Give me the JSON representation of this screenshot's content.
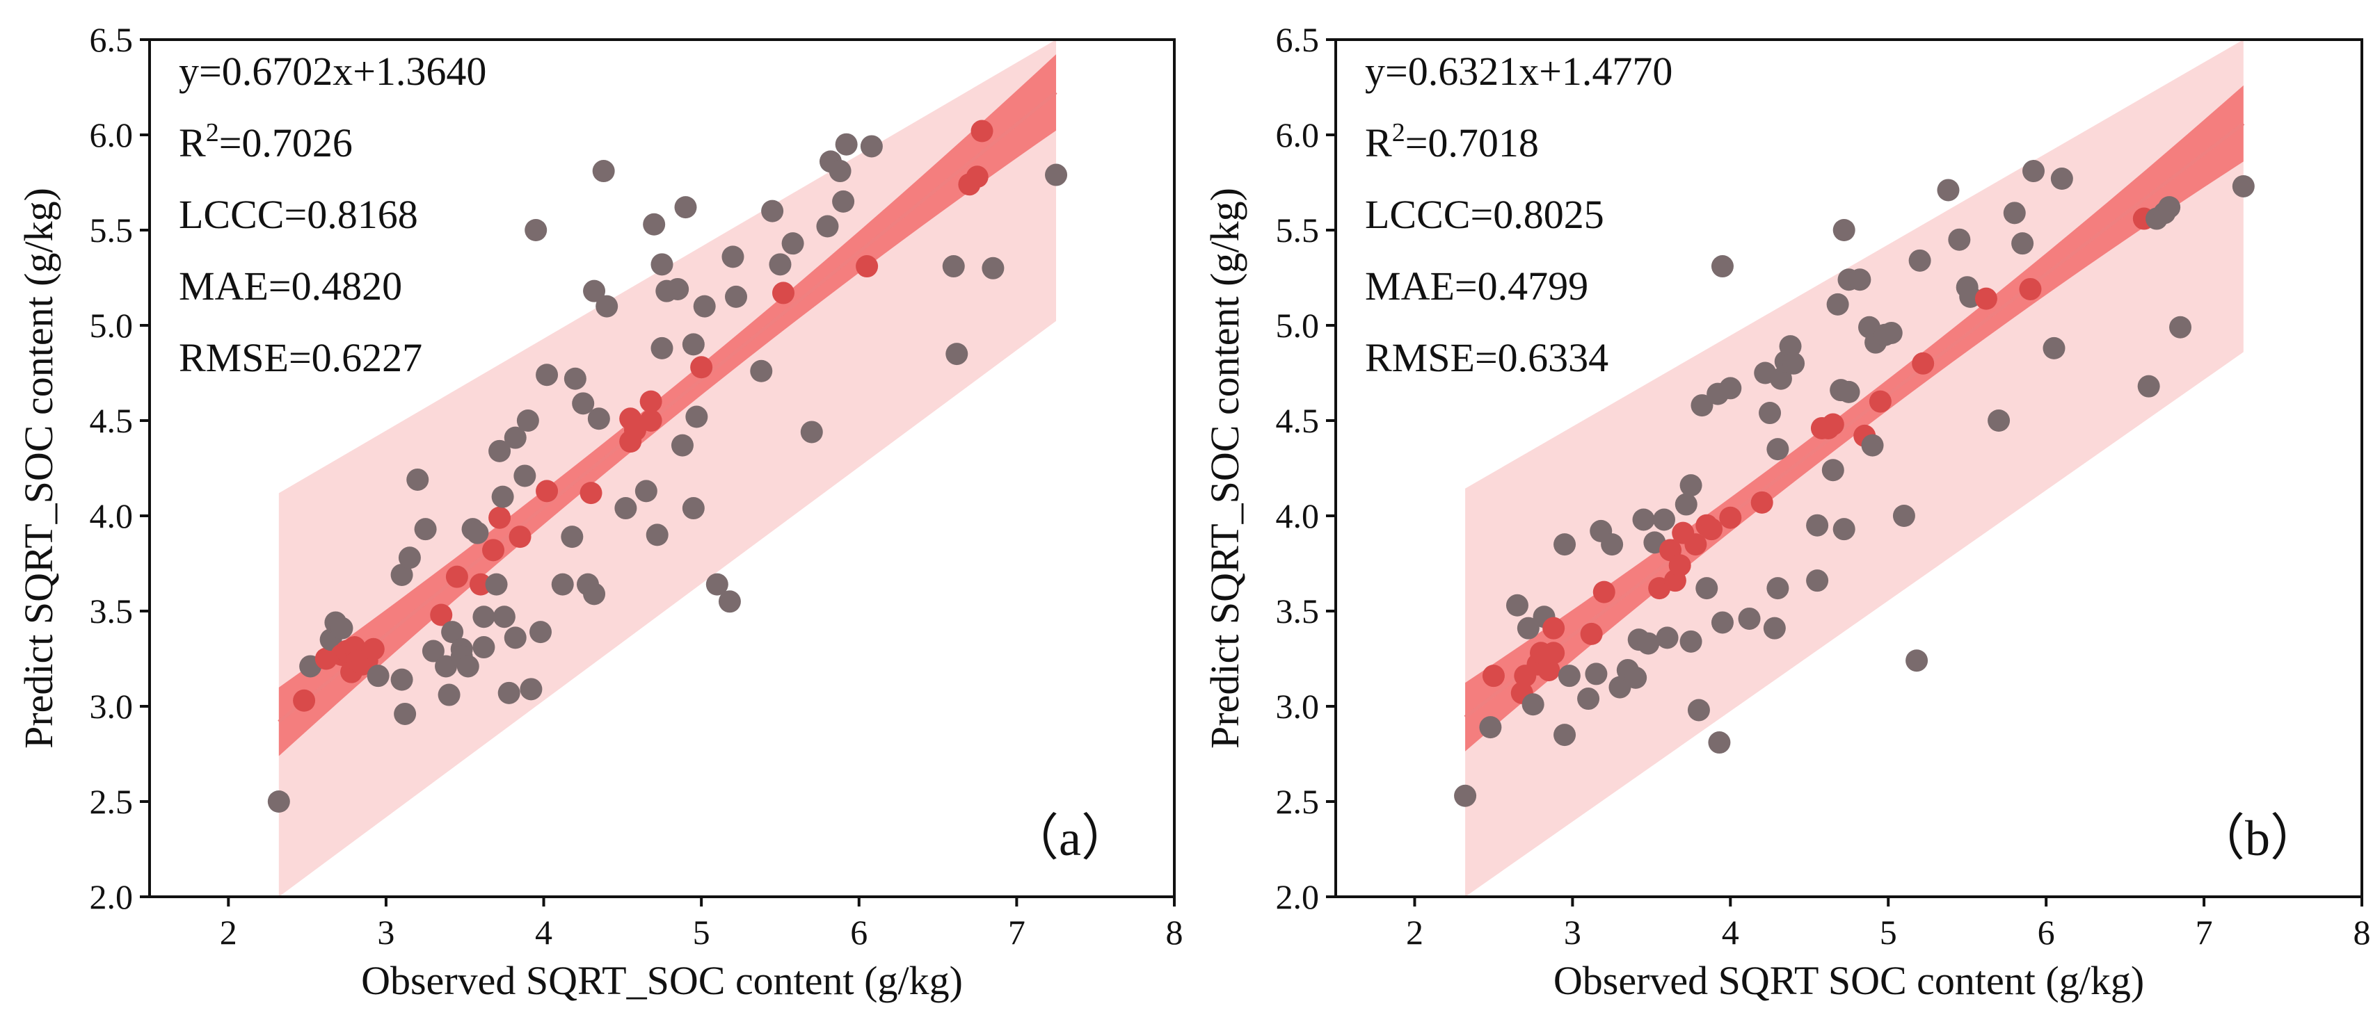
{
  "chart_data": [
    {
      "type": "scatter",
      "panel_label": "（a）",
      "xlabel": "Observed SQRT_SOC content (g/kg)",
      "ylabel": "Predict SQRT_SOC content (g/kg)",
      "xlim": [
        1.5,
        8
      ],
      "ylim": [
        2.0,
        6.5
      ],
      "xticks": [
        2,
        3,
        4,
        5,
        6,
        7,
        8
      ],
      "yticks": [
        "2.0",
        "2.5",
        "3.0",
        "3.5",
        "4.0",
        "4.5",
        "5.0",
        "5.5",
        "6.0",
        "6.5"
      ],
      "stats": {
        "equation": "y=0.6702x+1.3640",
        "r2_prefix": "R",
        "r2_sup": "2",
        "r2_value": "=0.7026",
        "lccc": "LCCC=0.8168",
        "mae": "MAE=0.4820",
        "rmse": "RMSE=0.6227"
      },
      "fit": {
        "slope": 0.6702,
        "intercept": 1.364,
        "x_range": [
          2.32,
          7.25
        ],
        "ci_halfwidth": [
          0.18,
          0.08,
          0.2
        ],
        "pi_halfwidth": 1.2
      },
      "colors": {
        "point": "#7a6b6d",
        "point_in_band": "#d94a4a",
        "line": "#f08080",
        "ci_band": "#f26d6d",
        "pi_band": "#fbd9d9"
      },
      "points": [
        [
          2.32,
          2.5
        ],
        [
          2.48,
          3.03
        ],
        [
          2.52,
          3.21
        ],
        [
          2.62,
          3.25
        ],
        [
          2.65,
          3.35
        ],
        [
          2.68,
          3.44
        ],
        [
          2.72,
          3.41
        ],
        [
          2.72,
          3.27
        ],
        [
          2.75,
          3.29
        ],
        [
          2.78,
          3.18
        ],
        [
          2.8,
          3.31
        ],
        [
          2.82,
          3.24
        ],
        [
          2.85,
          3.22
        ],
        [
          2.88,
          3.24
        ],
        [
          2.92,
          3.3
        ],
        [
          2.95,
          3.16
        ],
        [
          3.1,
          3.14
        ],
        [
          3.1,
          3.69
        ],
        [
          3.12,
          2.96
        ],
        [
          3.15,
          3.78
        ],
        [
          3.2,
          4.19
        ],
        [
          3.25,
          3.93
        ],
        [
          3.3,
          3.29
        ],
        [
          3.35,
          3.48
        ],
        [
          3.38,
          3.21
        ],
        [
          3.4,
          3.06
        ],
        [
          3.42,
          3.39
        ],
        [
          3.45,
          3.68
        ],
        [
          3.48,
          3.3
        ],
        [
          3.48,
          3.26
        ],
        [
          3.52,
          3.21
        ],
        [
          3.55,
          3.93
        ],
        [
          3.58,
          3.91
        ],
        [
          3.6,
          3.64
        ],
        [
          3.62,
          3.47
        ],
        [
          3.62,
          3.31
        ],
        [
          3.68,
          3.82
        ],
        [
          3.7,
          3.64
        ],
        [
          3.72,
          3.99
        ],
        [
          3.72,
          4.34
        ],
        [
          3.74,
          4.1
        ],
        [
          3.75,
          3.47
        ],
        [
          3.78,
          3.07
        ],
        [
          3.82,
          4.41
        ],
        [
          3.82,
          3.36
        ],
        [
          3.85,
          3.89
        ],
        [
          3.88,
          4.21
        ],
        [
          3.9,
          4.5
        ],
        [
          3.92,
          3.09
        ],
        [
          3.95,
          5.5
        ],
        [
          3.98,
          3.39
        ],
        [
          4.02,
          4.74
        ],
        [
          4.02,
          4.13
        ],
        [
          4.12,
          3.64
        ],
        [
          4.18,
          3.89
        ],
        [
          4.2,
          4.72
        ],
        [
          4.25,
          4.59
        ],
        [
          4.28,
          3.64
        ],
        [
          4.3,
          4.12
        ],
        [
          4.32,
          3.59
        ],
        [
          4.32,
          5.18
        ],
        [
          4.35,
          4.51
        ],
        [
          4.38,
          5.81
        ],
        [
          4.4,
          5.1
        ],
        [
          4.52,
          4.04
        ],
        [
          4.55,
          4.51
        ],
        [
          4.55,
          4.39
        ],
        [
          4.58,
          4.45
        ],
        [
          4.65,
          4.13
        ],
        [
          4.68,
          4.6
        ],
        [
          4.68,
          4.5
        ],
        [
          4.7,
          5.53
        ],
        [
          4.72,
          3.9
        ],
        [
          4.75,
          5.32
        ],
        [
          4.75,
          4.88
        ],
        [
          4.78,
          5.18
        ],
        [
          4.85,
          5.19
        ],
        [
          4.88,
          4.37
        ],
        [
          4.9,
          5.62
        ],
        [
          4.95,
          4.04
        ],
        [
          4.95,
          4.9
        ],
        [
          4.97,
          4.52
        ],
        [
          5.0,
          4.78
        ],
        [
          5.02,
          5.1
        ],
        [
          5.1,
          3.64
        ],
        [
          5.18,
          3.55
        ],
        [
          5.2,
          5.36
        ],
        [
          5.22,
          5.15
        ],
        [
          5.38,
          4.76
        ],
        [
          5.45,
          5.6
        ],
        [
          5.5,
          5.32
        ],
        [
          5.52,
          5.17
        ],
        [
          5.58,
          5.43
        ],
        [
          5.7,
          4.44
        ],
        [
          5.8,
          5.52
        ],
        [
          5.82,
          5.86
        ],
        [
          5.88,
          5.81
        ],
        [
          5.9,
          5.65
        ],
        [
          5.92,
          5.95
        ],
        [
          6.05,
          5.31
        ],
        [
          6.08,
          5.94
        ],
        [
          6.6,
          5.31
        ],
        [
          6.62,
          4.85
        ],
        [
          6.7,
          5.74
        ],
        [
          6.75,
          5.78
        ],
        [
          6.78,
          6.02
        ],
        [
          6.85,
          5.3
        ],
        [
          7.25,
          5.79
        ]
      ]
    },
    {
      "type": "scatter",
      "panel_label": "（b）",
      "xlabel": "Observed SQRT  SOC content (g/kg)",
      "ylabel": "Predict SQRT_SOC content (g/kg)",
      "xlim": [
        1.5,
        8
      ],
      "ylim": [
        2.0,
        6.5
      ],
      "xticks": [
        2,
        3,
        4,
        5,
        6,
        7,
        8
      ],
      "yticks": [
        "2.0",
        "2.5",
        "3.0",
        "3.5",
        "4.0",
        "4.5",
        "5.0",
        "5.5",
        "6.0",
        "6.5"
      ],
      "stats": {
        "equation": "y=0.6321x+1.4770",
        "r2_prefix": "R",
        "r2_sup": "2",
        "r2_value": "=0.7018",
        "lccc": "LCCC=0.8025",
        "mae": "MAE=0.4799",
        "rmse": "RMSE=0.6334"
      },
      "fit": {
        "slope": 0.6321,
        "intercept": 1.477,
        "x_range": [
          2.32,
          7.25
        ],
        "ci_halfwidth": [
          0.18,
          0.08,
          0.2
        ],
        "pi_halfwidth": 1.2
      },
      "colors": {
        "point": "#7a6b6d",
        "point_in_band": "#d94a4a",
        "line": "#f08080",
        "ci_band": "#f26d6d",
        "pi_band": "#fbd9d9"
      },
      "points": [
        [
          2.32,
          2.53
        ],
        [
          2.48,
          2.89
        ],
        [
          2.5,
          3.16
        ],
        [
          2.65,
          3.53
        ],
        [
          2.68,
          3.07
        ],
        [
          2.7,
          3.16
        ],
        [
          2.72,
          3.41
        ],
        [
          2.75,
          3.01
        ],
        [
          2.78,
          3.22
        ],
        [
          2.8,
          3.28
        ],
        [
          2.82,
          3.47
        ],
        [
          2.85,
          3.19
        ],
        [
          2.88,
          3.28
        ],
        [
          2.88,
          3.41
        ],
        [
          2.95,
          2.85
        ],
        [
          2.95,
          3.85
        ],
        [
          2.98,
          3.16
        ],
        [
          3.1,
          3.04
        ],
        [
          3.12,
          3.38
        ],
        [
          3.15,
          3.17
        ],
        [
          3.18,
          3.92
        ],
        [
          3.2,
          3.6
        ],
        [
          3.25,
          3.85
        ],
        [
          3.3,
          3.1
        ],
        [
          3.35,
          3.19
        ],
        [
          3.4,
          3.15
        ],
        [
          3.42,
          3.35
        ],
        [
          3.45,
          3.98
        ],
        [
          3.48,
          3.33
        ],
        [
          3.52,
          3.86
        ],
        [
          3.55,
          3.62
        ],
        [
          3.58,
          3.98
        ],
        [
          3.6,
          3.36
        ],
        [
          3.62,
          3.82
        ],
        [
          3.65,
          3.66
        ],
        [
          3.68,
          3.74
        ],
        [
          3.7,
          3.91
        ],
        [
          3.72,
          4.06
        ],
        [
          3.75,
          4.16
        ],
        [
          3.75,
          3.34
        ],
        [
          3.78,
          3.85
        ],
        [
          3.8,
          2.98
        ],
        [
          3.82,
          4.58
        ],
        [
          3.85,
          3.95
        ],
        [
          3.85,
          3.62
        ],
        [
          3.88,
          3.93
        ],
        [
          3.92,
          4.64
        ],
        [
          3.93,
          2.81
        ],
        [
          3.95,
          3.44
        ],
        [
          3.95,
          5.31
        ],
        [
          4.0,
          4.67
        ],
        [
          4.0,
          3.99
        ],
        [
          4.12,
          3.46
        ],
        [
          4.2,
          4.07
        ],
        [
          4.22,
          4.75
        ],
        [
          4.25,
          4.54
        ],
        [
          4.28,
          3.41
        ],
        [
          4.3,
          4.35
        ],
        [
          4.3,
          3.62
        ],
        [
          4.32,
          4.72
        ],
        [
          4.35,
          4.81
        ],
        [
          4.38,
          4.89
        ],
        [
          4.4,
          4.8
        ],
        [
          4.55,
          3.95
        ],
        [
          4.55,
          3.66
        ],
        [
          4.58,
          4.46
        ],
        [
          4.62,
          4.46
        ],
        [
          4.65,
          4.48
        ],
        [
          4.65,
          4.24
        ],
        [
          4.68,
          5.11
        ],
        [
          4.7,
          4.66
        ],
        [
          4.72,
          3.93
        ],
        [
          4.72,
          5.5
        ],
        [
          4.75,
          5.24
        ],
        [
          4.75,
          4.65
        ],
        [
          4.82,
          5.24
        ],
        [
          4.85,
          4.42
        ],
        [
          4.88,
          4.99
        ],
        [
          4.9,
          4.37
        ],
        [
          4.92,
          4.91
        ],
        [
          4.95,
          4.6
        ],
        [
          4.98,
          4.95
        ],
        [
          5.02,
          4.96
        ],
        [
          5.1,
          4.0
        ],
        [
          5.18,
          3.24
        ],
        [
          5.2,
          5.34
        ],
        [
          5.22,
          4.8
        ],
        [
          5.38,
          5.71
        ],
        [
          5.45,
          5.45
        ],
        [
          5.5,
          5.2
        ],
        [
          5.52,
          5.15
        ],
        [
          5.62,
          5.14
        ],
        [
          5.7,
          4.5
        ],
        [
          5.8,
          5.59
        ],
        [
          5.85,
          5.43
        ],
        [
          5.9,
          5.19
        ],
        [
          5.92,
          5.81
        ],
        [
          6.05,
          4.88
        ],
        [
          6.1,
          5.77
        ],
        [
          6.62,
          5.56
        ],
        [
          6.65,
          4.68
        ],
        [
          6.7,
          5.56
        ],
        [
          6.75,
          5.59
        ],
        [
          6.78,
          5.62
        ],
        [
          6.85,
          4.99
        ],
        [
          7.25,
          5.73
        ]
      ]
    }
  ]
}
